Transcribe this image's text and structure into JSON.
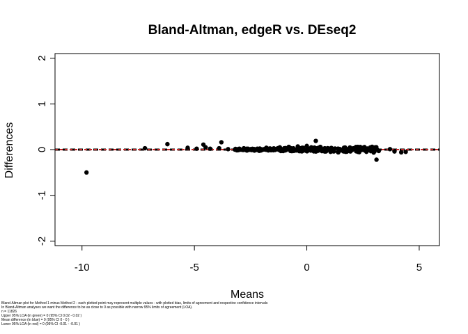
{
  "chart_data": {
    "type": "scatter",
    "title": "Bland-Altman, edgeR vs. DEseq2",
    "xlabel": "Means",
    "ylabel": "Differences",
    "xlim": [
      -11.2,
      5.9
    ],
    "ylim": [
      -2.1,
      2.1
    ],
    "x_ticks": [
      -10,
      -5,
      0,
      5
    ],
    "x_tick_labels": [
      "-10",
      "-5",
      "0",
      "5"
    ],
    "y_ticks": [
      -2,
      -1,
      0,
      1,
      2
    ],
    "y_tick_labels": [
      "-2",
      "-1",
      "0",
      "1",
      "2"
    ],
    "grid": false,
    "legend": "none",
    "reference_lines": [
      {
        "name": "Upper 95% LOA",
        "y": 0,
        "color": "#2e7d32"
      },
      {
        "name": "Mean difference",
        "y": 0,
        "color": "#1f3fbf"
      },
      {
        "name": "Lower 95% LOA",
        "y": 0,
        "color": "#c62828"
      }
    ],
    "point_color": "#000000",
    "points": [
      {
        "x": -9.8,
        "y": -0.5
      },
      {
        "x": -7.2,
        "y": 0.03
      },
      {
        "x": -6.2,
        "y": 0.12
      },
      {
        "x": -5.3,
        "y": 0.04
      },
      {
        "x": -4.9,
        "y": 0.02
      },
      {
        "x": -4.6,
        "y": 0.11
      },
      {
        "x": -4.5,
        "y": 0.05
      },
      {
        "x": -4.3,
        "y": 0.02
      },
      {
        "x": -3.9,
        "y": 0.03
      },
      {
        "x": -3.8,
        "y": 0.16
      },
      {
        "x": -3.5,
        "y": 0.01
      },
      {
        "x": -3.0,
        "y": 0.02
      },
      {
        "x": -2.8,
        "y": 0.03
      },
      {
        "x": -2.5,
        "y": 0.01
      },
      {
        "x": -2.2,
        "y": 0.02
      },
      {
        "x": -1.8,
        "y": 0.04
      },
      {
        "x": -1.5,
        "y": 0.02
      },
      {
        "x": -1.2,
        "y": 0.05
      },
      {
        "x": -1.0,
        "y": 0.03
      },
      {
        "x": -0.8,
        "y": 0.06
      },
      {
        "x": -0.6,
        "y": 0.03
      },
      {
        "x": -0.4,
        "y": 0.07
      },
      {
        "x": -0.2,
        "y": 0.04
      },
      {
        "x": 0.0,
        "y": 0.08
      },
      {
        "x": 0.2,
        "y": 0.05
      },
      {
        "x": 0.4,
        "y": 0.19
      },
      {
        "x": 0.6,
        "y": 0.06
      },
      {
        "x": 0.8,
        "y": 0.03
      },
      {
        "x": 1.0,
        "y": 0.02
      },
      {
        "x": 1.2,
        "y": -0.04
      },
      {
        "x": 1.4,
        "y": -0.06
      },
      {
        "x": 1.7,
        "y": -0.03
      },
      {
        "x": 2.0,
        "y": 0.02
      },
      {
        "x": 2.3,
        "y": -0.05
      },
      {
        "x": 2.5,
        "y": 0.04
      },
      {
        "x": 2.7,
        "y": -0.02
      },
      {
        "x": 2.9,
        "y": 0.01
      },
      {
        "x": 3.1,
        "y": -0.22
      },
      {
        "x": 3.2,
        "y": -0.03
      },
      {
        "x": 3.7,
        "y": 0.01
      },
      {
        "x": 3.9,
        "y": -0.04
      },
      {
        "x": 4.2,
        "y": -0.06
      },
      {
        "x": 4.4,
        "y": -0.05
      }
    ],
    "dense_band": {
      "x_range": [
        -3.2,
        3.3
      ],
      "y_range": [
        -0.07,
        0.07
      ]
    }
  },
  "notes": [
    "Bland-Altman plot for  Method 1 minus Method 2 - each plotted point may represent multiple values - with plotted bias, limits of agreement and respective confidence intervals",
    "In Bland-Altman analyses we want the difference to be as close to 0 as possible with narrow 95% limits of agreement (LOA).",
    "n = 11826",
    "Upper 95% LOA (in green) = 0 (95% CI 0.02 - 0.02 )",
    "Mean difference (in blue) = 0 (95% CI 0 - 0 )",
    "Lower 95% LOA (in red) = 0 (95% CI -0.01 - -0.01 )"
  ]
}
